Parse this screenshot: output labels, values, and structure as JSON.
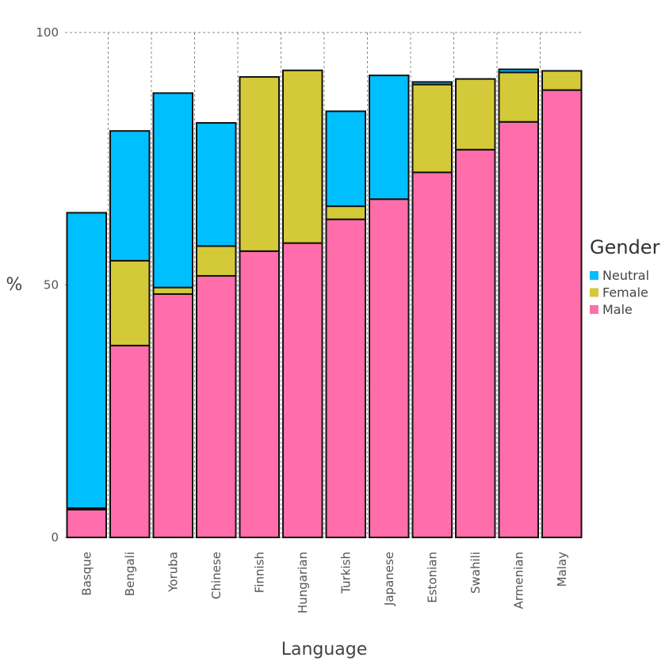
{
  "chart_data": {
    "type": "bar",
    "stacked": true,
    "title": "",
    "xlabel": "Language",
    "ylabel": "%",
    "ylim": [
      0,
      100
    ],
    "yticks": [
      0,
      50,
      100
    ],
    "grid": true,
    "legend": {
      "title": "Gender",
      "position": "right",
      "entries": [
        "Neutral",
        "Female",
        "Male"
      ]
    },
    "categories": [
      "Basque",
      "Bengali",
      "Yoruba",
      "Chinese",
      "Finnish",
      "Hungarian",
      "Turkish",
      "Japanese",
      "Estonian",
      "Swahili",
      "Armenian",
      "Malay"
    ],
    "series": [
      {
        "name": "Male",
        "color": "#ff6eab",
        "values": [
          5.5,
          38,
          48.2,
          51.8,
          56.7,
          58.3,
          63,
          67,
          72.3,
          76.8,
          82.3,
          88.6
        ]
      },
      {
        "name": "Female",
        "color": "#d4c939",
        "values": [
          0.3,
          16.8,
          1.3,
          5.9,
          34.5,
          34.2,
          2.6,
          0,
          17.4,
          14,
          9.8,
          3.8
        ]
      },
      {
        "name": "Neutral",
        "color": "#00bfff",
        "values": [
          58.5,
          25.7,
          38.5,
          24.4,
          0,
          0,
          18.8,
          24.5,
          0.5,
          0,
          0.6,
          0
        ]
      }
    ]
  }
}
